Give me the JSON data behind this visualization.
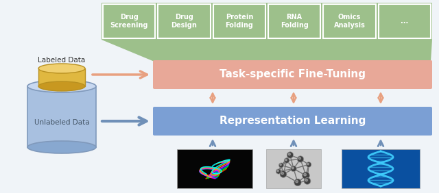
{
  "fig_width": 6.4,
  "fig_height": 2.82,
  "dpi": 100,
  "bg_color": "#f0f4f8",
  "top_boxes": {
    "labels": [
      "Drug\nScreening",
      "Drug\nDesign",
      "Protein\nFolding",
      "RNA\nFolding",
      "Omics\nAnalysis",
      "..."
    ],
    "bg_color": "#9dc08b",
    "text_color": "#ffffff",
    "border_color": "#ffffff"
  },
  "fine_tuning_box": {
    "label": "Task-specific Fine-Tuning",
    "color": "#e8a898",
    "text_color": "#ffffff"
  },
  "repr_learning_box": {
    "label": "Representation Learning",
    "color": "#7b9fd4",
    "text_color": "#ffffff"
  },
  "labeled_text": "Labeled Data",
  "unlabeled_text": "Unlabeled Data",
  "arrow_color_orange": "#e8a080",
  "arrow_color_blue": "#7090b8",
  "cylinder_blue_top": "#c8d8f0",
  "cylinder_blue_body": "#a8c0e0",
  "cylinder_blue_bot": "#88a8d0",
  "cylinder_gold_top": "#f0d070",
  "cylinder_gold_body": "#e0b840",
  "cylinder_gold_bot": "#c89820"
}
